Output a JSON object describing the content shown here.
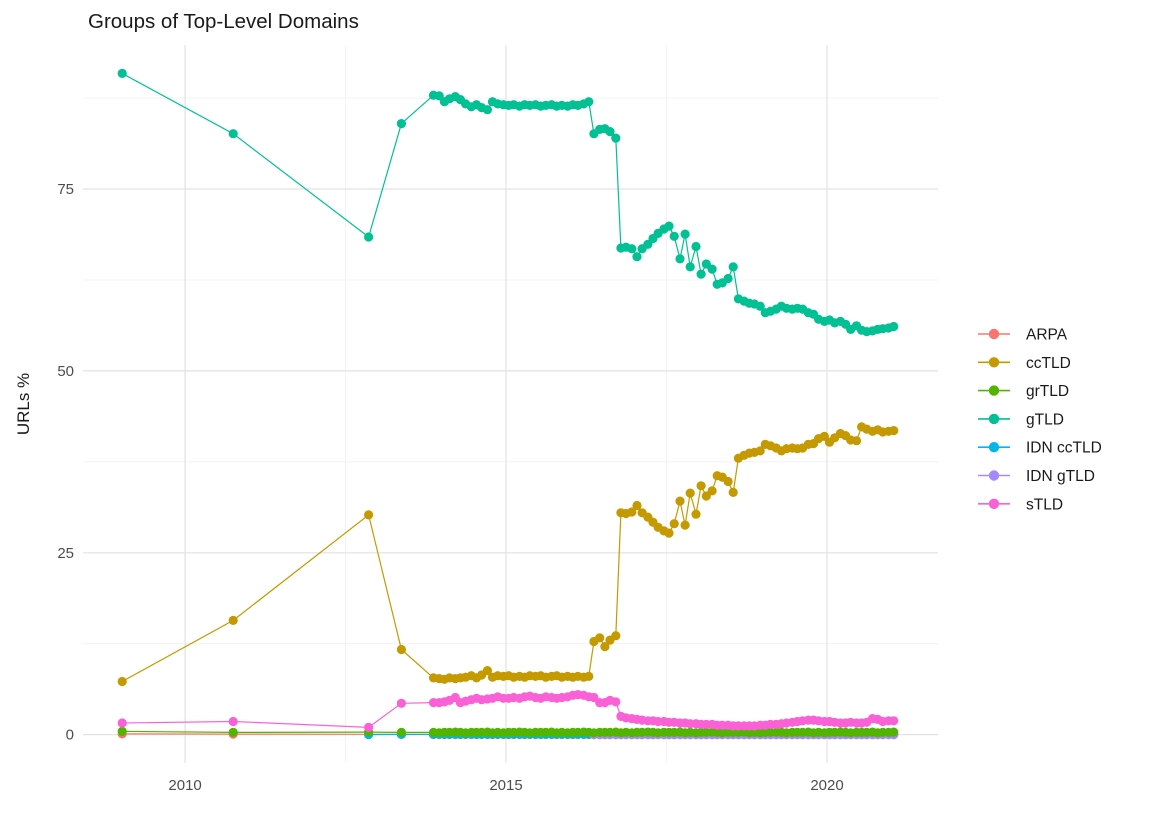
{
  "title": "Groups of Top-Level Domains",
  "chart_data": {
    "type": "line",
    "title": "Groups of Top-Level Domains",
    "xlabel": "",
    "y_title": "URLs %",
    "x_ticks": [
      2010,
      2015,
      2020
    ],
    "x_minor": [
      2012.5,
      2017.5
    ],
    "y_ticks": [
      0,
      25,
      50,
      75
    ],
    "y_minor": [
      12.5,
      37.5,
      62.5,
      87.5
    ],
    "x_range": [
      2008.41,
      2021.73
    ],
    "y_range": [
      -3.9,
      94.8
    ],
    "grid_major_color": "#e2e2e2",
    "grid_minor_color": "#f0f0f0",
    "background_color": "#ffffff",
    "legend_position": "right",
    "legend_order": [
      "ARPA",
      "ccTLD",
      "grTLD",
      "gTLD",
      "IDN ccTLD",
      "IDN gTLD",
      "sTLD"
    ],
    "x_monthly": [
      2013.87,
      2013.96,
      2014.04,
      2014.12,
      2014.21,
      2014.29,
      2014.37,
      2014.46,
      2014.54,
      2014.62,
      2014.71,
      2014.79,
      2014.87,
      2014.96,
      2015.04,
      2015.12,
      2015.21,
      2015.29,
      2015.37,
      2015.46,
      2015.54,
      2015.62,
      2015.71,
      2015.79,
      2015.87,
      2015.96,
      2016.04,
      2016.12,
      2016.21,
      2016.29,
      2016.37,
      2016.46,
      2016.54,
      2016.62,
      2016.71,
      2016.79,
      2016.87,
      2016.96,
      2017.04,
      2017.12,
      2017.21,
      2017.29,
      2017.37,
      2017.46,
      2017.54,
      2017.62,
      2017.71,
      2017.79,
      2017.87,
      2017.96,
      2018.04,
      2018.12,
      2018.21,
      2018.29,
      2018.37,
      2018.46,
      2018.54,
      2018.62,
      2018.71,
      2018.79,
      2018.87,
      2018.96,
      2019.04,
      2019.12,
      2019.21,
      2019.29,
      2019.37,
      2019.46,
      2019.54,
      2019.62,
      2019.71,
      2019.79,
      2019.87,
      2019.96,
      2020.04,
      2020.12,
      2020.21,
      2020.29,
      2020.37,
      2020.46,
      2020.54,
      2020.62,
      2020.71,
      2020.79,
      2020.87,
      2020.96,
      2021.04
    ],
    "series": [
      {
        "name": "ARPA",
        "color": "#F8766D",
        "points": [
          [
            2009.02,
            0.1
          ],
          [
            2010.75,
            0.07
          ],
          [
            2012.86,
            0.05
          ],
          [
            2013.37,
            0.04
          ]
        ],
        "monthly_const": 0.02
      },
      {
        "name": "ccTLD",
        "color": "#C49A00",
        "points": [
          [
            2009.02,
            7.3
          ],
          [
            2010.75,
            15.7
          ],
          [
            2012.86,
            30.2
          ],
          [
            2013.37,
            11.7
          ]
        ],
        "monthly_values": [
          7.8,
          7.7,
          7.6,
          7.8,
          7.7,
          7.8,
          7.9,
          8.1,
          7.8,
          8.2,
          8.8,
          7.9,
          8.1,
          8.0,
          8.1,
          7.9,
          8.0,
          7.9,
          8.1,
          8.0,
          8.1,
          7.9,
          8.0,
          8.1,
          7.9,
          8.0,
          7.9,
          8.0,
          7.9,
          8.0,
          12.8,
          13.3,
          12.1,
          13.0,
          13.6,
          30.5,
          30.4,
          30.6,
          31.5,
          30.5,
          29.9,
          29.2,
          28.5,
          28.0,
          27.7,
          29.0,
          32.1,
          28.8,
          33.2,
          30.3,
          34.2,
          32.8,
          33.5,
          35.6,
          35.4,
          34.8,
          33.3,
          38.0,
          38.4,
          38.7,
          38.8,
          39.0,
          39.9,
          39.7,
          39.4,
          39.0,
          39.3,
          39.4,
          39.3,
          39.4,
          39.9,
          40.0,
          40.7,
          41.0,
          40.2,
          40.8,
          41.4,
          41.1,
          40.5,
          40.4,
          42.3,
          42.0,
          41.7,
          41.9,
          41.6,
          41.7,
          41.8
        ]
      },
      {
        "name": "IDN ccTLD",
        "color": "#00B6EB",
        "points": [
          [
            2012.86,
            0.0
          ],
          [
            2013.37,
            0.03
          ]
        ],
        "monthly_const": 0.05
      },
      {
        "name": "IDN gTLD",
        "color": "#A58AFF",
        "points": [],
        "monthly_from": 2016.37,
        "monthly_const": 0.0
      },
      {
        "name": "grTLD",
        "color": "#53B400",
        "points": [
          [
            2009.02,
            0.45
          ],
          [
            2010.75,
            0.3
          ],
          [
            2012.86,
            0.35
          ],
          [
            2013.37,
            0.3
          ]
        ],
        "monthly_values": [
          0.3,
          0.25,
          0.3,
          0.3,
          0.35,
          0.3,
          0.25,
          0.3,
          0.3,
          0.3,
          0.35,
          0.25,
          0.3,
          0.25,
          0.3,
          0.3,
          0.35,
          0.3,
          0.25,
          0.3,
          0.3,
          0.3,
          0.35,
          0.25,
          0.3,
          0.25,
          0.3,
          0.3,
          0.35,
          0.3,
          0.25,
          0.3,
          0.3,
          0.3,
          0.35,
          0.25,
          0.3,
          0.25,
          0.3,
          0.3,
          0.35,
          0.3,
          0.25,
          0.3,
          0.3,
          0.3,
          0.35,
          0.25,
          0.3,
          0.25,
          0.3,
          0.3,
          0.35,
          0.3,
          0.25,
          0.3,
          0.3,
          0.3,
          0.35,
          0.25,
          0.3,
          0.25,
          0.3,
          0.3,
          0.35,
          0.3,
          0.25,
          0.3,
          0.3,
          0.3,
          0.35,
          0.25,
          0.3,
          0.25,
          0.3,
          0.3,
          0.35,
          0.3,
          0.25,
          0.3,
          0.3,
          0.3,
          0.35,
          0.25,
          0.3,
          0.3,
          0.35
        ]
      },
      {
        "name": "gTLD",
        "color": "#00C094",
        "points": [
          [
            2009.02,
            90.9
          ],
          [
            2010.75,
            82.6
          ],
          [
            2012.86,
            68.4
          ],
          [
            2013.37,
            84.0
          ]
        ],
        "monthly_values": [
          87.9,
          87.8,
          87.0,
          87.4,
          87.7,
          87.3,
          86.7,
          86.3,
          86.6,
          86.2,
          85.9,
          87.0,
          86.7,
          86.6,
          86.5,
          86.6,
          86.4,
          86.6,
          86.5,
          86.6,
          86.4,
          86.5,
          86.6,
          86.4,
          86.5,
          86.4,
          86.6,
          86.5,
          86.7,
          87.0,
          82.6,
          83.2,
          83.3,
          82.9,
          82.0,
          66.9,
          67.0,
          66.8,
          65.7,
          66.8,
          67.4,
          68.2,
          68.9,
          69.5,
          69.9,
          68.5,
          65.4,
          68.8,
          64.3,
          67.1,
          63.3,
          64.7,
          64.0,
          61.9,
          62.1,
          62.7,
          64.3,
          59.9,
          59.6,
          59.3,
          59.2,
          58.9,
          58.0,
          58.2,
          58.5,
          58.9,
          58.6,
          58.5,
          58.6,
          58.5,
          58.0,
          57.8,
          57.1,
          56.8,
          57.0,
          56.6,
          56.8,
          56.4,
          55.7,
          56.2,
          55.6,
          55.4,
          55.5,
          55.7,
          55.8,
          55.9,
          56.1
        ]
      },
      {
        "name": "sTLD",
        "color": "#FB61D7",
        "points": [
          [
            2009.02,
            1.6
          ],
          [
            2010.75,
            1.8
          ],
          [
            2012.86,
            1.0
          ],
          [
            2013.37,
            4.3
          ]
        ],
        "monthly_values": [
          4.4,
          4.4,
          4.5,
          4.7,
          5.1,
          4.4,
          4.6,
          4.8,
          5.0,
          4.8,
          4.9,
          5.0,
          5.2,
          5.0,
          5.0,
          5.1,
          5.0,
          5.2,
          5.3,
          5.1,
          5.0,
          5.2,
          5.1,
          5.0,
          5.1,
          5.2,
          5.4,
          5.5,
          5.4,
          5.2,
          5.1,
          4.4,
          4.4,
          4.7,
          4.5,
          2.5,
          2.3,
          2.2,
          2.1,
          2.0,
          1.9,
          1.9,
          1.8,
          1.8,
          1.7,
          1.7,
          1.6,
          1.6,
          1.5,
          1.5,
          1.4,
          1.4,
          1.4,
          1.3,
          1.3,
          1.3,
          1.2,
          1.2,
          1.2,
          1.2,
          1.2,
          1.3,
          1.3,
          1.4,
          1.4,
          1.5,
          1.6,
          1.7,
          1.8,
          1.9,
          2.0,
          2.0,
          1.9,
          1.8,
          1.8,
          1.7,
          1.6,
          1.6,
          1.7,
          1.6,
          1.6,
          1.7,
          2.2,
          2.1,
          1.8,
          1.9,
          1.9
        ]
      }
    ]
  }
}
